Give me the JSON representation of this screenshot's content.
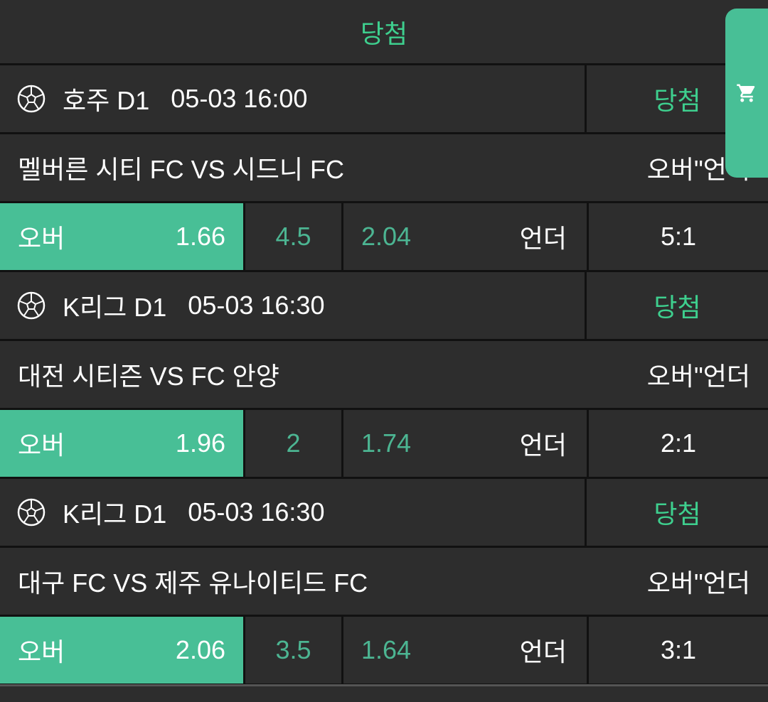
{
  "header": {
    "title": "당첨"
  },
  "colors": {
    "accent": "#48bf96",
    "win_text": "#3ecf8e",
    "odds_text": "#4cb592"
  },
  "cart": {
    "icon": "shopping-cart-icon"
  },
  "games": [
    {
      "league": "호주 D1",
      "time": "05-03 16:00",
      "status": "당첨",
      "match": "멜버른 시티 FC VS 시드니 FC",
      "market": "오버\"언더",
      "over_label": "오버",
      "over_odds": "1.66",
      "line": "4.5",
      "under_odds": "2.04",
      "under_label": "언더",
      "score": "5:1"
    },
    {
      "league": "K리그 D1",
      "time": "05-03 16:30",
      "status": "당첨",
      "match": "대전 시티즌 VS FC 안양",
      "market": "오버\"언더",
      "over_label": "오버",
      "over_odds": "1.96",
      "line": "2",
      "under_odds": "1.74",
      "under_label": "언더",
      "score": "2:1"
    },
    {
      "league": "K리그 D1",
      "time": "05-03 16:30",
      "status": "당첨",
      "match": "대구 FC VS 제주 유나이티드 FC",
      "market": "오버\"언더",
      "over_label": "오버",
      "over_odds": "2.06",
      "line": "3.5",
      "under_odds": "1.64",
      "under_label": "언더",
      "score": "3:1"
    }
  ]
}
